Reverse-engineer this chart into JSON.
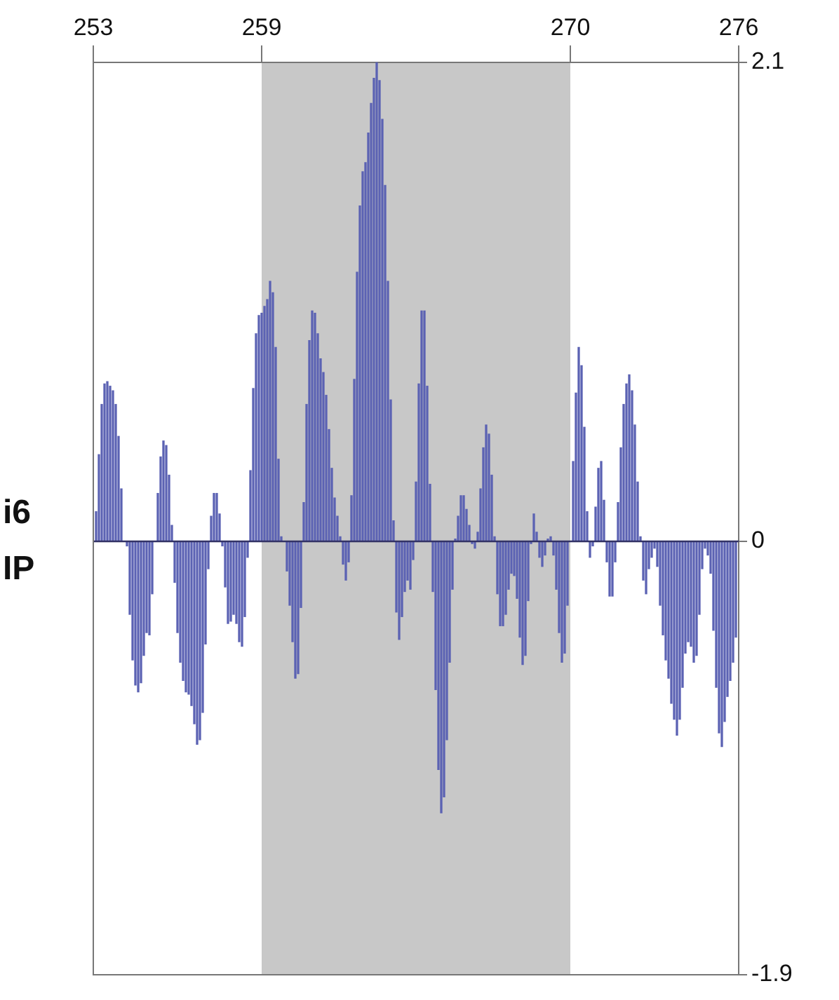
{
  "chart_data": {
    "type": "bar",
    "annotations": [
      "i6",
      "IP"
    ],
    "x": [
      253.1,
      253.2,
      253.3,
      253.4,
      253.5,
      253.6,
      253.7,
      253.8,
      253.9,
      254.0,
      254.2,
      254.3,
      254.4,
      254.5,
      254.6,
      254.7,
      254.8,
      254.9,
      255.0,
      255.1,
      255.3,
      255.4,
      255.5,
      255.6,
      255.7,
      255.8,
      255.9,
      256.0,
      256.1,
      256.2,
      256.3,
      256.4,
      256.5,
      256.6,
      256.7,
      256.8,
      256.9,
      257.0,
      257.1,
      257.2,
      257.3,
      257.4,
      257.5,
      257.6,
      257.7,
      257.8,
      257.9,
      258.0,
      258.1,
      258.2,
      258.3,
      258.4,
      258.5,
      258.6,
      258.7,
      258.8,
      258.9,
      259.0,
      259.1,
      259.2,
      259.3,
      259.4,
      259.5,
      259.6,
      259.7,
      259.9,
      260.0,
      260.1,
      260.2,
      260.3,
      260.4,
      260.5,
      260.6,
      260.7,
      260.8,
      260.9,
      261.0,
      261.1,
      261.2,
      261.3,
      261.4,
      261.5,
      261.6,
      261.7,
      261.8,
      261.9,
      262.0,
      262.1,
      262.2,
      262.3,
      262.4,
      262.5,
      262.6,
      262.7,
      262.8,
      262.9,
      263.0,
      263.1,
      263.2,
      263.3,
      263.4,
      263.5,
      263.6,
      263.7,
      263.8,
      263.9,
      264.0,
      264.1,
      264.2,
      264.3,
      264.4,
      264.5,
      264.6,
      264.7,
      264.8,
      264.9,
      265.0,
      265.1,
      265.2,
      265.3,
      265.4,
      265.5,
      265.6,
      265.7,
      265.8,
      265.9,
      266.0,
      266.1,
      266.2,
      266.3,
      266.4,
      266.5,
      266.6,
      266.7,
      266.8,
      266.9,
      267.0,
      267.1,
      267.2,
      267.3,
      267.4,
      267.5,
      267.6,
      267.7,
      267.8,
      267.9,
      268.0,
      268.1,
      268.2,
      268.3,
      268.4,
      268.5,
      268.6,
      268.7,
      268.8,
      268.9,
      269.0,
      269.1,
      269.2,
      269.3,
      269.4,
      269.5,
      269.6,
      269.7,
      269.8,
      269.9,
      270.1,
      270.2,
      270.3,
      270.4,
      270.5,
      270.6,
      270.7,
      270.8,
      270.9,
      271.0,
      271.1,
      271.2,
      271.3,
      271.4,
      271.5,
      271.6,
      271.7,
      271.8,
      271.9,
      272.0,
      272.1,
      272.2,
      272.3,
      272.4,
      272.5,
      272.6,
      272.7,
      272.8,
      272.9,
      273.0,
      273.1,
      273.2,
      273.3,
      273.4,
      273.5,
      273.6,
      273.7,
      273.8,
      273.9,
      274.0,
      274.1,
      274.2,
      274.3,
      274.4,
      274.5,
      274.6,
      274.7,
      274.8,
      274.9,
      275.0,
      275.1,
      275.2,
      275.3,
      275.4,
      275.5,
      275.6,
      275.7,
      275.8,
      275.9
    ],
    "values": [
      0.13,
      0.38,
      0.6,
      0.69,
      0.7,
      0.68,
      0.66,
      0.6,
      0.46,
      0.23,
      -0.02,
      -0.32,
      -0.52,
      -0.63,
      -0.66,
      -0.62,
      -0.5,
      -0.4,
      -0.41,
      -0.23,
      0.21,
      0.37,
      0.44,
      0.42,
      0.29,
      0.07,
      -0.18,
      -0.4,
      -0.53,
      -0.61,
      -0.66,
      -0.67,
      -0.72,
      -0.8,
      -0.89,
      -0.87,
      -0.75,
      -0.45,
      -0.12,
      0.11,
      0.21,
      0.21,
      0.12,
      -0.02,
      -0.2,
      -0.36,
      -0.35,
      -0.32,
      -0.36,
      -0.44,
      -0.46,
      -0.33,
      -0.07,
      0.31,
      0.67,
      0.91,
      0.99,
      1.0,
      1.03,
      1.06,
      1.14,
      1.09,
      0.85,
      0.36,
      0.02,
      -0.13,
      -0.28,
      -0.44,
      -0.6,
      -0.58,
      -0.29,
      0.17,
      0.6,
      0.88,
      1.01,
      1.0,
      0.91,
      0.8,
      0.74,
      0.64,
      0.49,
      0.32,
      0.19,
      0.11,
      0.02,
      -0.1,
      -0.17,
      -0.09,
      0.2,
      0.71,
      1.18,
      1.47,
      1.62,
      1.66,
      1.79,
      1.92,
      2.03,
      2.1,
      2.02,
      1.85,
      1.56,
      1.14,
      0.62,
      0.09,
      -0.31,
      -0.43,
      -0.33,
      -0.22,
      -0.17,
      -0.21,
      -0.08,
      0.26,
      0.69,
      1.01,
      1.01,
      0.68,
      0.25,
      -0.22,
      -0.65,
      -1.0,
      -1.19,
      -1.12,
      -0.87,
      -0.53,
      -0.21,
      0.01,
      0.11,
      0.2,
      0.2,
      0.14,
      0.07,
      -0.01,
      -0.03,
      0.04,
      0.23,
      0.41,
      0.51,
      0.47,
      0.29,
      0.02,
      -0.23,
      -0.37,
      -0.37,
      -0.32,
      -0.21,
      -0.14,
      -0.15,
      -0.25,
      -0.42,
      -0.54,
      -0.5,
      -0.26,
      -0.01,
      0.12,
      0.04,
      -0.07,
      -0.11,
      -0.06,
      0.01,
      0.02,
      -0.06,
      -0.21,
      -0.4,
      -0.53,
      -0.49,
      -0.28,
      0.35,
      0.65,
      0.85,
      0.77,
      0.5,
      0.13,
      -0.07,
      -0.02,
      0.15,
      0.32,
      0.35,
      0.18,
      -0.09,
      -0.24,
      -0.24,
      -0.09,
      0.17,
      0.41,
      0.6,
      0.69,
      0.73,
      0.66,
      0.51,
      0.26,
      0.02,
      -0.17,
      -0.23,
      -0.12,
      -0.07,
      -0.03,
      -0.11,
      -0.28,
      -0.41,
      -0.52,
      -0.6,
      -0.71,
      -0.78,
      -0.85,
      -0.78,
      -0.64,
      -0.49,
      -0.44,
      -0.46,
      -0.53,
      -0.5,
      -0.32,
      -0.12,
      -0.03,
      -0.06,
      -0.14,
      -0.39,
      -0.64,
      -0.84,
      -0.9,
      -0.79,
      -0.68,
      -0.61,
      -0.53,
      -0.42
    ],
    "color": "#5b62b3",
    "xlim": [
      253,
      276
    ],
    "xticks": [
      253,
      259,
      270,
      276
    ],
    "ylim": [
      -1.9,
      2.1
    ],
    "yticks": [
      2.1,
      0,
      -1.9
    ],
    "grid": false,
    "legend": false,
    "ref_lines": [
      {
        "axis": "y",
        "value": 0,
        "color": "#333366"
      }
    ],
    "bands": [
      {
        "axis": "x",
        "from": 259,
        "to": 270,
        "color": "#c8c8c8"
      }
    ]
  }
}
